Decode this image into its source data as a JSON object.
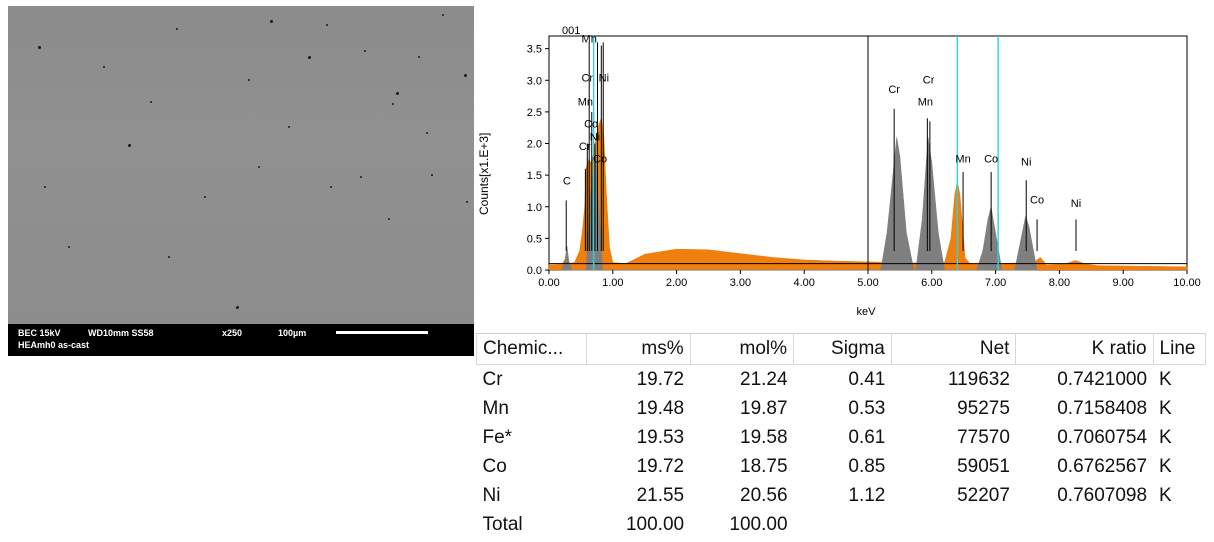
{
  "sem_image": {
    "info_line1_left": "BEC 15kV",
    "info_line1_wd": "WD10mm SS58",
    "info_line1_mag": "x250",
    "info_line1_scale": "100µm",
    "info_line2": "HEAmh0 as-cast"
  },
  "chart_data": {
    "type": "area",
    "title": "001",
    "xlabel": "keV",
    "ylabel": "Counts[x1.E+3]",
    "xlim": [
      0,
      10
    ],
    "ylim": [
      0,
      3.7
    ],
    "x_ticks": [
      "0.00",
      "1.00",
      "2.00",
      "3.00",
      "4.00",
      "5.00",
      "6.00",
      "7.00",
      "8.00",
      "9.00",
      "10.00"
    ],
    "y_ticks": [
      "0.0",
      "0.5",
      "1.0",
      "1.5",
      "2.0",
      "2.5",
      "3.0",
      "3.5"
    ],
    "grid": false,
    "series": [
      {
        "color": "#f07f0e",
        "points": [
          [
            0.0,
            0.08
          ],
          [
            0.2,
            0.09
          ],
          [
            0.26,
            0.18
          ],
          [
            0.3,
            0.1
          ],
          [
            0.4,
            0.12
          ],
          [
            0.48,
            0.3
          ],
          [
            0.52,
            0.6
          ],
          [
            0.56,
            1.0
          ],
          [
            0.58,
            1.6
          ],
          [
            0.62,
            1.75
          ],
          [
            0.66,
            1.7
          ],
          [
            0.7,
            1.85
          ],
          [
            0.74,
            2.1
          ],
          [
            0.78,
            2.3
          ],
          [
            0.82,
            2.4
          ],
          [
            0.86,
            2.1
          ],
          [
            0.9,
            1.2
          ],
          [
            0.95,
            0.35
          ],
          [
            1.0,
            0.12
          ],
          [
            1.2,
            0.1
          ],
          [
            1.5,
            0.25
          ],
          [
            2.0,
            0.33
          ],
          [
            2.5,
            0.32
          ],
          [
            3.0,
            0.26
          ],
          [
            3.5,
            0.2
          ],
          [
            4.0,
            0.16
          ],
          [
            4.5,
            0.14
          ],
          [
            5.0,
            0.13
          ],
          [
            5.4,
            0.12
          ],
          [
            5.8,
            0.11
          ],
          [
            6.2,
            0.12
          ],
          [
            6.3,
            0.5
          ],
          [
            6.36,
            1.2
          ],
          [
            6.4,
            1.4
          ],
          [
            6.44,
            1.2
          ],
          [
            6.52,
            0.2
          ],
          [
            6.6,
            0.1
          ],
          [
            7.0,
            0.1
          ],
          [
            7.6,
            0.12
          ],
          [
            7.7,
            0.2
          ],
          [
            7.8,
            0.08
          ],
          [
            8.1,
            0.1
          ],
          [
            8.25,
            0.15
          ],
          [
            8.4,
            0.1
          ],
          [
            8.6,
            0.07
          ],
          [
            10.0,
            0.05
          ]
        ]
      },
      {
        "color": "#7f7f7f",
        "points": [
          [
            0.2,
            0.0
          ],
          [
            0.25,
            0.15
          ],
          [
            0.28,
            0.38
          ],
          [
            0.31,
            0.15
          ],
          [
            0.36,
            0.0
          ],
          [
            0.58,
            0.0
          ],
          [
            0.64,
            1.1
          ],
          [
            0.7,
            1.6
          ],
          [
            0.74,
            1.8
          ],
          [
            0.78,
            1.0
          ],
          [
            0.84,
            0.0
          ],
          [
            5.2,
            0.0
          ],
          [
            5.3,
            0.6
          ],
          [
            5.4,
            1.6
          ],
          [
            5.45,
            2.1
          ],
          [
            5.5,
            1.8
          ],
          [
            5.6,
            0.6
          ],
          [
            5.72,
            0.0
          ],
          [
            5.75,
            0.0
          ],
          [
            5.85,
            0.8
          ],
          [
            5.94,
            2.1
          ],
          [
            6.0,
            1.7
          ],
          [
            6.1,
            0.6
          ],
          [
            6.2,
            0.0
          ],
          [
            6.7,
            0.0
          ],
          [
            6.8,
            0.3
          ],
          [
            6.88,
            0.8
          ],
          [
            6.93,
            1.0
          ],
          [
            6.98,
            0.7
          ],
          [
            7.1,
            0.0
          ],
          [
            7.3,
            0.0
          ],
          [
            7.38,
            0.4
          ],
          [
            7.47,
            0.85
          ],
          [
            7.52,
            0.7
          ],
          [
            7.65,
            0.0
          ]
        ]
      }
    ],
    "peak_labels": [
      {
        "label": "C",
        "x": 0.28,
        "y": 1.35
      },
      {
        "label": "Mn",
        "x": 0.63,
        "y": 3.6
      },
      {
        "label": "Cr",
        "x": 0.6,
        "y": 2.98
      },
      {
        "label": "Ni",
        "x": 0.86,
        "y": 2.98
      },
      {
        "label": "Mn",
        "x": 0.57,
        "y": 2.6
      },
      {
        "label": "Co",
        "x": 0.66,
        "y": 2.25
      },
      {
        "label": "Ni",
        "x": 0.72,
        "y": 2.05
      },
      {
        "label": "Cr",
        "x": 0.56,
        "y": 1.9
      },
      {
        "label": "Co",
        "x": 0.8,
        "y": 1.7
      },
      {
        "label": "Cr",
        "x": 5.41,
        "y": 2.8
      },
      {
        "label": "Cr",
        "x": 5.95,
        "y": 2.95
      },
      {
        "label": "Mn",
        "x": 5.9,
        "y": 2.6
      },
      {
        "label": "Mn",
        "x": 6.49,
        "y": 1.7
      },
      {
        "label": "Co",
        "x": 6.93,
        "y": 1.7
      },
      {
        "label": "Ni",
        "x": 7.48,
        "y": 1.65
      },
      {
        "label": "Co",
        "x": 7.65,
        "y": 1.05
      },
      {
        "label": "Ni",
        "x": 8.26,
        "y": 1.0
      }
    ],
    "marker_lines": [
      {
        "x": 0.57,
        "top": 1.6
      },
      {
        "x": 0.6,
        "top": 2.0
      },
      {
        "x": 0.63,
        "top": 3.6
      },
      {
        "x": 0.67,
        "top": 2.5
      },
      {
        "x": 0.72,
        "top": 2.0
      },
      {
        "x": 0.76,
        "top": 3.6
      },
      {
        "x": 0.82,
        "top": 3.55
      },
      {
        "x": 0.85,
        "top": 3.6
      },
      {
        "x": 0.27,
        "top": 1.1
      },
      {
        "x": 5.41,
        "top": 2.55
      },
      {
        "x": 5.93,
        "top": 2.4
      },
      {
        "x": 5.97,
        "top": 2.35
      },
      {
        "x": 6.49,
        "top": 1.55
      },
      {
        "x": 6.93,
        "top": 1.55
      },
      {
        "x": 7.48,
        "top": 1.42
      },
      {
        "x": 7.65,
        "top": 0.8
      },
      {
        "x": 8.26,
        "top": 0.8
      }
    ],
    "cyan_lines": [
      0.7,
      6.4,
      7.04
    ],
    "divider_x": 5.0
  },
  "table": {
    "headers": [
      "Chemic...",
      "ms%",
      "mol%",
      "Sigma",
      "Net",
      "K ratio",
      "Line"
    ],
    "rows": [
      [
        "Cr",
        "19.72",
        "21.24",
        "0.41",
        "119632",
        "0.7421000",
        "K"
      ],
      [
        "Mn",
        "19.48",
        "19.87",
        "0.53",
        "95275",
        "0.7158408",
        "K"
      ],
      [
        "Fe*",
        "19.53",
        "19.58",
        "0.61",
        "77570",
        "0.7060754",
        "K"
      ],
      [
        "Co",
        "19.72",
        "18.75",
        "0.85",
        "59051",
        "0.6762567",
        "K"
      ],
      [
        "Ni",
        "21.55",
        "20.56",
        "1.12",
        "52207",
        "0.7607098",
        "K"
      ],
      [
        "Total",
        "100.00",
        "100.00",
        "",
        "",
        "",
        ""
      ]
    ]
  }
}
